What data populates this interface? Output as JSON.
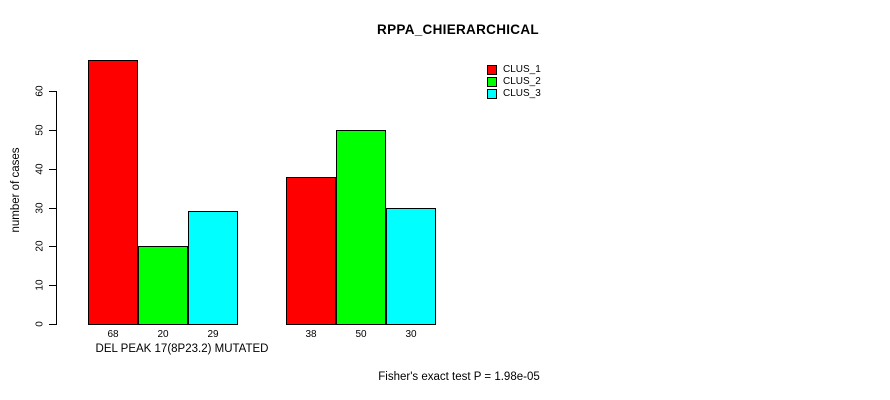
{
  "chart_data": {
    "type": "bar",
    "title": "RPPA_CHIERARCHICAL",
    "ylabel": "number of cases",
    "xlabel": "DEL PEAK 17(8P23.2) MUTATED",
    "footer": "Fisher's exact test P = 1.98e-05",
    "ylim": [
      0,
      60
    ],
    "yticks": [
      0,
      10,
      20,
      30,
      40,
      50,
      60
    ],
    "grid": false,
    "legend_position": "top-right",
    "background_color": "#ffffff",
    "bar_border_color": "#000000",
    "series": [
      {
        "name": "CLUS_1",
        "color": "#ff0000",
        "values": [
          68,
          38
        ]
      },
      {
        "name": "CLUS_2",
        "color": "#00ff00",
        "values": [
          20,
          50
        ]
      },
      {
        "name": "CLUS_3",
        "color": "#00ffff",
        "values": [
          29,
          30
        ]
      }
    ],
    "bar_labels": [
      [
        "68",
        "20",
        "29"
      ],
      [
        "38",
        "50",
        "30"
      ]
    ]
  }
}
